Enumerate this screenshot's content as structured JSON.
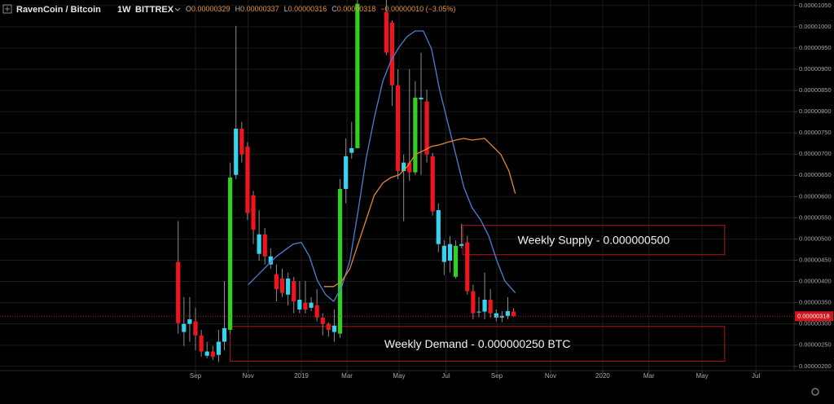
{
  "chart_data": {
    "type": "candlestick",
    "title": "RavenCoin / Bitcoin",
    "interval": "1W",
    "exchange": "BITTREX",
    "ohlc_legend": [
      {
        "key": "O",
        "value": "0.00000329"
      },
      {
        "key": "H",
        "value": "0.00000337"
      },
      {
        "key": "L",
        "value": "0.00000316"
      },
      {
        "key": "C",
        "value": "0.00000318"
      }
    ],
    "change": "−0.00000010 (−3.05%)",
    "last_price_label": "0.00000318",
    "x": [
      0,
      1,
      2,
      3,
      4,
      5,
      6,
      7,
      8,
      9,
      10,
      11,
      12,
      13,
      14,
      15,
      16,
      17,
      18,
      19,
      20,
      21,
      22,
      23,
      24,
      25,
      26,
      27,
      28,
      29,
      30,
      31,
      36,
      37,
      38,
      39,
      40,
      41,
      42,
      43,
      44,
      45,
      46,
      47,
      48,
      49,
      50,
      51,
      52,
      53,
      54,
      55,
      56,
      57,
      58
    ],
    "open": [
      4.46e-06,
      2.81e-06,
      3e-06,
      3.06e-06,
      2.73e-06,
      2.25e-06,
      2.35e-06,
      2.27e-06,
      2.58e-06,
      2.86e-06,
      6.51e-06,
      7.6e-06,
      7.18e-06,
      6.03e-06,
      4.65e-06,
      5.11e-06,
      4.4e-06,
      4.17e-06,
      4.07e-06,
      3.69e-06,
      4.01e-06,
      3.34e-06,
      3.5e-06,
      3.38e-06,
      3.44e-06,
      3.15e-06,
      3e-06,
      2.81e-06,
      2.77e-06,
      6.18e-06,
      7.03e-06,
      7.14e-06,
      1.035e-05,
      1.01e-05,
      8.62e-06,
      6.6e-06,
      6.8e-06,
      6.57e-06,
      8.29e-06,
      8.24e-06,
      6.95e-06,
      4.88e-06,
      4.46e-06,
      4.49e-06,
      4.11e-06,
      4.84e-06,
      4.92e-06,
      3.77e-06,
      3.27e-06,
      3.29e-06,
      3.57e-06,
      3.15e-06,
      3.15e-06,
      3.19e-06,
      3.29e-06
    ],
    "high": [
      5.42e-06,
      3.63e-06,
      3.63e-06,
      3.38e-06,
      2.86e-06,
      2.58e-06,
      2.48e-06,
      2.86e-06,
      4.01e-06,
      6.8e-06,
      1.002e-05,
      7.76e-06,
      7.28e-06,
      6.13e-06,
      5.68e-06,
      5.26e-06,
      4.78e-06,
      4.4e-06,
      4.3e-06,
      4.21e-06,
      4.11e-06,
      4.01e-06,
      4.01e-06,
      3.63e-06,
      3.82e-06,
      3.25e-06,
      3.04e-06,
      3.34e-06,
      6.41e-06,
      7.37e-06,
      7.76e-06,
      1.063e-05,
      1.063e-05,
      1.015e-05,
      9e-06,
      6.99e-06,
      9e-06,
      8.72e-06,
      9.39e-06,
      8.52e-06,
      7.03e-06,
      5.84e-06,
      4.97e-06,
      5.07e-06,
      4.97e-06,
      5.36e-06,
      5.07e-06,
      3.92e-06,
      3.63e-06,
      4.21e-06,
      3.82e-06,
      3.34e-06,
      3.3e-06,
      3.63e-06,
      3.37e-06
    ],
    "low": [
      2.77e-06,
      2.48e-06,
      2.58e-06,
      2.38e-06,
      2.23e-06,
      2.19e-06,
      2.15e-06,
      2.1e-06,
      2.38e-06,
      2.77e-06,
      6.41e-06,
      6.8e-06,
      5.45e-06,
      4.88e-06,
      4.49e-06,
      4.4e-06,
      4.3e-06,
      3.53e-06,
      3.63e-06,
      3.44e-06,
      3.25e-06,
      3.25e-06,
      3.25e-06,
      3.3e-06,
      3.06e-06,
      2.73e-06,
      2.7e-06,
      2.58e-06,
      2.67e-06,
      5.84e-06,
      6.89e-06,
      7.18e-06,
      9.33e-06,
      8.14e-06,
      6.41e-06,
      5.42e-06,
      6.37e-06,
      6.51e-06,
      6.51e-06,
      6.8e-06,
      5.55e-06,
      4.69e-06,
      4.15e-06,
      4.21e-06,
      4.07e-06,
      4.78e-06,
      3.69e-06,
      3.11e-06,
      3.15e-06,
      3.11e-06,
      3.15e-06,
      3.06e-06,
      3.04e-06,
      3.11e-06,
      3.16e-06
    ],
    "close": [
      3.02e-06,
      3e-06,
      3.11e-06,
      2.73e-06,
      2.35e-06,
      2.35e-06,
      2.23e-06,
      2.58e-06,
      2.9e-06,
      6.45e-06,
      7.6e-06,
      6.99e-06,
      5.61e-06,
      5.22e-06,
      5.11e-06,
      4.59e-06,
      4.59e-06,
      3.82e-06,
      3.73e-06,
      4.07e-06,
      3.53e-06,
      3.57e-06,
      3.34e-06,
      3.5e-06,
      3.15e-06,
      3e-06,
      2.86e-06,
      2.96e-06,
      6.18e-06,
      6.95e-06,
      7.14e-06,
      1.054e-05,
      9.39e-06,
      8.62e-06,
      6.6e-06,
      6.8e-06,
      6.57e-06,
      8.33e-06,
      8.33e-06,
      6.99e-06,
      5.65e-06,
      5.68e-06,
      4.84e-06,
      4.88e-06,
      4.84e-06,
      4.88e-06,
      3.77e-06,
      3.25e-06,
      3.29e-06,
      3.57e-06,
      3.25e-06,
      3.25e-06,
      3.19e-06,
      3.3e-06,
      3.18e-06
    ],
    "colors": [
      "#f0141e",
      "#36d3f0",
      "#36d3f0",
      "#f0141e",
      "#f0141e",
      "#36d3f0",
      "#f0141e",
      "#36d3f0",
      "#36d3f0",
      "#2ed11f",
      "#36d3f0",
      "#f0141e",
      "#f0141e",
      "#f0141e",
      "#36d3f0",
      "#f0141e",
      "#36d3f0",
      "#f0141e",
      "#f0141e",
      "#36d3f0",
      "#f0141e",
      "#36d3f0",
      "#f0141e",
      "#36d3f0",
      "#f0141e",
      "#f0141e",
      "#f0141e",
      "#36d3f0",
      "#2ed11f",
      "#36d3f0",
      "#36d3f0",
      "#2ed11f",
      "#f0141e",
      "#f0141e",
      "#f0141e",
      "#36d3f0",
      "#f0141e",
      "#2ed11f",
      "#36d3f0",
      "#f0141e",
      "#f0141e",
      "#36d3f0",
      "#36d3f0",
      "#36d3f0",
      "#2ed11f",
      "#36d3f0",
      "#f0141e",
      "#f0141e",
      "#36d3f0",
      "#36d3f0",
      "#f0141e",
      "#36d3f0",
      "#36d3f0",
      "#36d3f0",
      "#f0141e"
    ],
    "overlays": [
      {
        "color": "#4a7fd4",
        "x": [
          12.1,
          14.2,
          17.0,
          19.9,
          21.3,
          22.7,
          24.1,
          25.5,
          26.9,
          28.3,
          29.7,
          31.1,
          32.5,
          33.9,
          35.4,
          36.8,
          38.2,
          39.6,
          41.0,
          42.4,
          43.8,
          45.2,
          46.6,
          48.0,
          49.4,
          50.8,
          52.3,
          53.7,
          55.1,
          56.5,
          58.3
        ],
        "values": [
          3.92e-06,
          4.21e-06,
          4.59e-06,
          4.88e-06,
          4.92e-06,
          4.59e-06,
          4.01e-06,
          3.69e-06,
          3.53e-06,
          3.88e-06,
          4.49e-06,
          5.65e-06,
          6.89e-06,
          7.85e-06,
          8.72e-06,
          9.2e-06,
          9.52e-06,
          9.77e-06,
          9.9e-06,
          9.9e-06,
          9.48e-06,
          8.52e-06,
          7.76e-06,
          6.99e-06,
          6.22e-06,
          5.74e-06,
          5.45e-06,
          5.07e-06,
          4.49e-06,
          4.01e-06,
          3.73e-06
        ]
      },
      {
        "color": "#e8862e",
        "x": [
          25.2,
          26.9,
          28.3,
          29.7,
          31.1,
          32.5,
          33.9,
          35.4,
          36.8,
          38.2,
          39.6,
          41.0,
          42.4,
          43.8,
          45.2,
          46.6,
          48.0,
          49.4,
          50.8,
          53.0,
          54.4,
          55.8,
          57.2,
          58.3
        ],
        "values": [
          3.88e-06,
          3.88e-06,
          4.01e-06,
          4.3e-06,
          4.88e-06,
          5.45e-06,
          6.03e-06,
          6.32e-06,
          6.45e-06,
          6.51e-06,
          6.7e-06,
          6.99e-06,
          7.08e-06,
          7.18e-06,
          7.22e-06,
          7.28e-06,
          7.33e-06,
          7.37e-06,
          7.33e-06,
          7.37e-06,
          7.18e-06,
          6.99e-06,
          6.6e-06,
          6.07e-06
        ]
      }
    ],
    "zones": [
      {
        "label": "Weekly Supply - 0.000000500",
        "x": [
          49.2,
          94.5
        ],
        "y": [
          4.63e-06,
          5.32e-06
        ]
      },
      {
        "label": "Weekly Demand - 0.000000250 BTC",
        "x": [
          9.0,
          94.5
        ],
        "y": [
          2.12e-06,
          2.94e-06
        ]
      }
    ],
    "xlim": [
      -30.8,
      106.5
    ],
    "xticks": [
      {
        "value": 3.0,
        "label": "Sep"
      },
      {
        "value": 12.1,
        "label": "Nov"
      },
      {
        "value": 21.3,
        "label": "2019"
      },
      {
        "value": 29.2,
        "label": "Mar"
      },
      {
        "value": 38.2,
        "label": "May"
      },
      {
        "value": 46.3,
        "label": "Jul"
      },
      {
        "value": 55.1,
        "label": "Sep"
      },
      {
        "value": 64.4,
        "label": "Nov"
      },
      {
        "value": 73.4,
        "label": "2020"
      },
      {
        "value": 81.4,
        "label": "Mar"
      },
      {
        "value": 90.6,
        "label": "May"
      },
      {
        "value": 99.9,
        "label": "Jul"
      }
    ],
    "ylim": [
      1.9e-06,
      1.063e-05
    ],
    "yticks": [
      {
        "value": 2e-06,
        "label": "0.00000200"
      },
      {
        "value": 2.5e-06,
        "label": "0.00000250"
      },
      {
        "value": 3e-06,
        "label": "0.00000300"
      },
      {
        "value": 3.5e-06,
        "label": "0.00000350"
      },
      {
        "value": 4e-06,
        "label": "0.00000400"
      },
      {
        "value": 4.5e-06,
        "label": "0.00000450"
      },
      {
        "value": 5e-06,
        "label": "0.00000500"
      },
      {
        "value": 5.5e-06,
        "label": "0.00000550"
      },
      {
        "value": 6e-06,
        "label": "0.00000600"
      },
      {
        "value": 6.5e-06,
        "label": "0.00000650"
      },
      {
        "value": 7e-06,
        "label": "0.00000700"
      },
      {
        "value": 7.5e-06,
        "label": "0.00000750"
      },
      {
        "value": 8e-06,
        "label": "0.00000800"
      },
      {
        "value": 8.5e-06,
        "label": "0.00000850"
      },
      {
        "value": 9e-06,
        "label": "0.00000900"
      },
      {
        "value": 9.5e-06,
        "label": "0.00000950"
      },
      {
        "value": 1e-05,
        "label": "0.00001000"
      },
      {
        "value": 1.05e-05,
        "label": "0.00001050"
      }
    ],
    "grid": true
  }
}
